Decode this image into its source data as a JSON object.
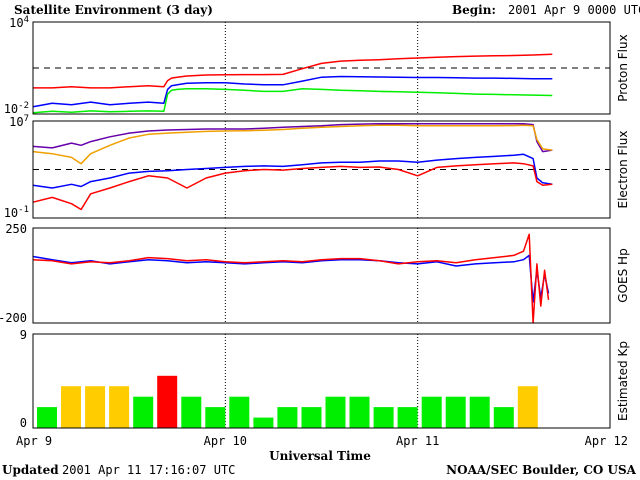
{
  "header": {
    "title": "Satellite Environment (3 day)",
    "begin_label": "Begin:",
    "begin_value": "2001 Apr 9 0000 UTC"
  },
  "footer": {
    "updated_label": "Updated",
    "updated_value": "2001 Apr 11 17:16:07 UTC",
    "credit": "NOAA/SEC Boulder, CO USA"
  },
  "colors": {
    "red": "#ff0000",
    "blue": "#0000ff",
    "green": "#00ee00",
    "orange": "#f0a000",
    "purple": "#6600aa",
    "kp_green": "#00ee00",
    "kp_yellow": "#ffcc00",
    "kp_red": "#ff0000"
  },
  "chart_data": [
    {
      "type": "line",
      "ylabel": "Proton Flux",
      "y_scale": "log",
      "ylim": [
        0.01,
        10000
      ],
      "y_ticks": [
        {
          "value": 10000,
          "base": "10",
          "exp": "4"
        },
        {
          "value": 0.01,
          "base": "10",
          "exp": "-2"
        }
      ],
      "threshold": 10,
      "x": [
        0,
        0.1,
        0.2,
        0.3,
        0.4,
        0.5,
        0.6,
        0.68,
        0.7,
        0.72,
        0.75,
        0.8,
        0.9,
        1.0,
        1.1,
        1.2,
        1.3,
        1.4,
        1.5,
        1.6,
        1.7,
        1.8,
        1.9,
        2.0,
        2.1,
        2.2,
        2.3,
        2.4,
        2.5,
        2.6,
        2.7
      ],
      "series": [
        {
          "color": "red",
          "values": [
            0.5,
            0.5,
            0.6,
            0.5,
            0.5,
            0.6,
            0.7,
            0.6,
            1.5,
            2.2,
            2.5,
            3.0,
            3.5,
            3.6,
            3.7,
            3.7,
            3.8,
            9,
            20,
            28,
            32,
            35,
            40,
            45,
            50,
            55,
            60,
            62,
            65,
            70,
            80
          ]
        },
        {
          "color": "blue",
          "values": [
            0.03,
            0.05,
            0.04,
            0.06,
            0.04,
            0.05,
            0.06,
            0.05,
            0.4,
            0.7,
            0.8,
            1.0,
            1.1,
            1.1,
            0.9,
            0.8,
            0.8,
            1.4,
            2.5,
            2.8,
            2.7,
            2.6,
            2.5,
            2.4,
            2.4,
            2.3,
            2.2,
            2.2,
            2.1,
            2.0,
            2.0
          ]
        },
        {
          "color": "green",
          "values": [
            0.012,
            0.015,
            0.013,
            0.016,
            0.014,
            0.015,
            0.016,
            0.015,
            0.2,
            0.35,
            0.4,
            0.45,
            0.45,
            0.4,
            0.35,
            0.3,
            0.3,
            0.45,
            0.4,
            0.35,
            0.33,
            0.3,
            0.28,
            0.26,
            0.24,
            0.22,
            0.2,
            0.19,
            0.18,
            0.17,
            0.16
          ]
        }
      ]
    },
    {
      "type": "line",
      "ylabel": "Electron Flux",
      "y_scale": "log",
      "ylim": [
        0.1,
        10000000
      ],
      "y_ticks": [
        {
          "value": 10000000,
          "base": "10",
          "exp": "7"
        },
        {
          "value": 0.1,
          "base": "10",
          "exp": "-1"
        }
      ],
      "threshold": 1000,
      "x": [
        0,
        0.1,
        0.2,
        0.25,
        0.3,
        0.4,
        0.5,
        0.6,
        0.7,
        0.8,
        0.9,
        1.0,
        1.1,
        1.2,
        1.3,
        1.4,
        1.5,
        1.6,
        1.7,
        1.8,
        1.9,
        2.0,
        2.1,
        2.2,
        2.3,
        2.4,
        2.5,
        2.55,
        2.6,
        2.62,
        2.65,
        2.7
      ],
      "series": [
        {
          "color": "purple",
          "values": [
            80000,
            60000,
            150000,
            100000,
            200000,
            500000,
            1000000,
            1500000,
            1800000,
            2000000,
            2200000,
            2200000,
            2200000,
            2500000,
            3000000,
            3500000,
            4000000,
            5000000,
            5500000,
            6000000,
            6000000,
            6000000,
            6000000,
            6000000,
            6000000,
            6000000,
            6000000,
            6000000,
            5000000,
            200000,
            30000,
            40000
          ]
        },
        {
          "color": "orange",
          "values": [
            30000,
            20000,
            10000,
            3000,
            20000,
            100000,
            400000,
            800000,
            1000000,
            1200000,
            1400000,
            1500000,
            1600000,
            1700000,
            2000000,
            2500000,
            3000000,
            3500000,
            4000000,
            4500000,
            4500000,
            4000000,
            4000000,
            4000000,
            4000000,
            4000000,
            4200000,
            4500000,
            4000000,
            300000,
            50000,
            40000
          ]
        },
        {
          "color": "blue",
          "values": [
            50,
            30,
            60,
            40,
            100,
            200,
            500,
            700,
            800,
            1000,
            1200,
            1500,
            1800,
            2000,
            1800,
            2500,
            3500,
            4000,
            4000,
            5000,
            5000,
            4000,
            6000,
            8000,
            10000,
            12000,
            15000,
            18000,
            8000,
            200,
            80,
            60
          ]
        },
        {
          "color": "red",
          "values": [
            2,
            5,
            1.5,
            0.5,
            10,
            30,
            100,
            300,
            200,
            30,
            200,
            500,
            800,
            1000,
            900,
            1200,
            1500,
            1800,
            1500,
            1600,
            1000,
            300,
            1500,
            2000,
            2500,
            3000,
            3500,
            3000,
            2000,
            100,
            50,
            60
          ]
        }
      ]
    },
    {
      "type": "line",
      "ylabel": "GOES Hp",
      "ylim": [
        -200,
        250
      ],
      "y_ticks": [
        {
          "value": 250,
          "label": "250"
        },
        {
          "value": -200,
          "label": "-200"
        }
      ],
      "x": [
        0,
        0.1,
        0.2,
        0.3,
        0.4,
        0.5,
        0.6,
        0.7,
        0.8,
        0.9,
        1.0,
        1.1,
        1.2,
        1.3,
        1.4,
        1.5,
        1.6,
        1.7,
        1.8,
        1.9,
        2.0,
        2.1,
        2.2,
        2.3,
        2.4,
        2.5,
        2.55,
        2.58,
        2.6,
        2.62,
        2.64,
        2.66,
        2.68
      ],
      "series": [
        {
          "color": "blue",
          "values": [
            115,
            100,
            85,
            95,
            80,
            90,
            100,
            95,
            85,
            90,
            85,
            80,
            85,
            90,
            85,
            95,
            100,
            100,
            95,
            85,
            80,
            90,
            70,
            80,
            85,
            90,
            100,
            120,
            -100,
            50,
            -80,
            30,
            -60
          ]
        },
        {
          "color": "red",
          "values": [
            100,
            95,
            80,
            90,
            85,
            95,
            110,
            105,
            95,
            100,
            90,
            85,
            90,
            95,
            90,
            100,
            105,
            105,
            95,
            80,
            90,
            95,
            85,
            100,
            110,
            120,
            140,
            220,
            -200,
            80,
            -120,
            50,
            -90
          ]
        }
      ]
    },
    {
      "type": "bar",
      "ylabel": "Estimated Kp",
      "ylim": [
        0,
        9
      ],
      "y_ticks": [
        {
          "value": 9,
          "label": "9"
        },
        {
          "value": 0,
          "label": "0"
        }
      ],
      "values": [
        2,
        4,
        4,
        4,
        3,
        5,
        3,
        2,
        3,
        1,
        2,
        2,
        3,
        3,
        2,
        2,
        3,
        3,
        3,
        2,
        4
      ],
      "colors": [
        "kp_green",
        "kp_yellow",
        "kp_yellow",
        "kp_yellow",
        "kp_green",
        "kp_red",
        "kp_green",
        "kp_green",
        "kp_green",
        "kp_green",
        "kp_green",
        "kp_green",
        "kp_green",
        "kp_green",
        "kp_green",
        "kp_green",
        "kp_green",
        "kp_green",
        "kp_green",
        "kp_green",
        "kp_yellow"
      ]
    }
  ],
  "x_axis": {
    "label": "Universal Time",
    "xlim": [
      0,
      3
    ],
    "ticks": [
      {
        "value": 0,
        "label": "Apr 9"
      },
      {
        "value": 1,
        "label": "Apr 10"
      },
      {
        "value": 2,
        "label": "Apr 11"
      },
      {
        "value": 3,
        "label": "Apr 12"
      }
    ],
    "day_markers": [
      1,
      2
    ]
  }
}
